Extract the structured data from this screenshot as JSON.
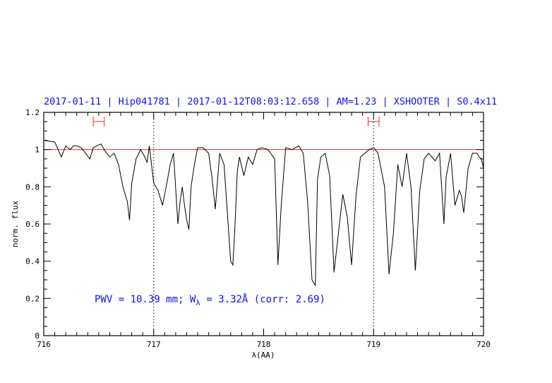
{
  "chart_data": {
    "type": "line",
    "title": "2017-01-11 | Hip041781 | 2017-01-12T08:03:12.658 | AM=1.23 | XSHOOTER | S0.4x11",
    "xlabel": "λ(AA)",
    "ylabel": "norm. flux",
    "xlim": [
      716,
      720
    ],
    "ylim": [
      0,
      1.2
    ],
    "x_ticks": [
      "716",
      "717",
      "718",
      "719",
      "720"
    ],
    "y_ticks": [
      "0",
      "0.2",
      "0.4",
      "0.6",
      "0.8",
      "1",
      "1.2"
    ],
    "reference_line": {
      "y": 1.0,
      "color": "#e03030"
    },
    "vertical_markers": [
      717.0,
      719.0
    ],
    "continuum_windows": [
      [
        716.45,
        716.55
      ],
      [
        718.95,
        719.05
      ]
    ],
    "annotation": {
      "pwv_text": "PWV = 10.39 mm; W",
      "w_sub": "λ",
      "w_text": " = 3.32Å (corr: 2.69)"
    },
    "colors": {
      "spectrum": "#000000",
      "reference": "#e03030",
      "text": "#1010ee",
      "axes": "#000000"
    },
    "series": [
      {
        "x": [
          716.0,
          716.1,
          716.16,
          716.2,
          716.24,
          716.27,
          716.3,
          716.34,
          716.38,
          716.42,
          716.45,
          716.48,
          716.52,
          716.56,
          716.6,
          716.64,
          716.68,
          716.72,
          716.76,
          716.78,
          716.8,
          716.84,
          716.88,
          716.92,
          716.94,
          716.96,
          717.0,
          717.04,
          717.08,
          717.12,
          717.15,
          717.18,
          717.22,
          717.24,
          717.26,
          717.28,
          717.3,
          717.32,
          717.34,
          717.37,
          717.4,
          717.45,
          717.5,
          717.53,
          717.56,
          717.6,
          717.64,
          717.7,
          717.72,
          717.74,
          717.76,
          717.78,
          717.82,
          717.86,
          717.9,
          717.94,
          717.98,
          718.04,
          718.1,
          718.13,
          718.16,
          718.2,
          718.26,
          718.32,
          718.36,
          718.4,
          718.44,
          718.47,
          718.49,
          718.52,
          718.56,
          718.6,
          718.64,
          718.68,
          718.72,
          718.76,
          718.8,
          718.84,
          718.88,
          718.92,
          718.96,
          719.0,
          719.04,
          719.1,
          719.14,
          719.18,
          719.22,
          719.26,
          719.3,
          719.34,
          719.38,
          719.42,
          719.46,
          719.5,
          719.56,
          719.6,
          719.64,
          719.66,
          719.7,
          719.74,
          719.78,
          719.8,
          719.82,
          719.86,
          719.9,
          719.94,
          719.96,
          719.98,
          720.0
        ],
        "y": [
          1.05,
          1.04,
          0.96,
          1.02,
          1.0,
          1.02,
          1.02,
          1.01,
          0.98,
          0.95,
          1.01,
          1.02,
          1.03,
          0.99,
          0.96,
          0.98,
          0.92,
          0.8,
          0.72,
          0.62,
          0.82,
          0.95,
          1.0,
          0.96,
          0.93,
          1.02,
          0.82,
          0.78,
          0.7,
          0.82,
          0.92,
          0.98,
          0.6,
          0.72,
          0.8,
          0.7,
          0.62,
          0.57,
          0.8,
          0.92,
          1.01,
          1.01,
          0.98,
          0.85,
          0.68,
          0.98,
          0.92,
          0.4,
          0.38,
          0.6,
          0.88,
          0.96,
          0.86,
          0.96,
          0.92,
          1.0,
          1.01,
          1.0,
          0.95,
          0.38,
          0.7,
          1.01,
          1.0,
          1.02,
          0.98,
          0.72,
          0.3,
          0.27,
          0.84,
          0.96,
          0.98,
          0.86,
          0.34,
          0.55,
          0.76,
          0.64,
          0.38,
          0.75,
          0.96,
          0.98,
          1.0,
          1.01,
          0.98,
          0.8,
          0.33,
          0.55,
          0.92,
          0.8,
          0.98,
          0.8,
          0.35,
          0.78,
          0.95,
          0.98,
          0.94,
          0.98,
          0.6,
          0.85,
          0.98,
          0.7,
          0.78,
          0.75,
          0.66,
          0.9,
          0.98,
          0.98,
          0.96,
          0.95,
          0.9
        ]
      }
    ]
  }
}
